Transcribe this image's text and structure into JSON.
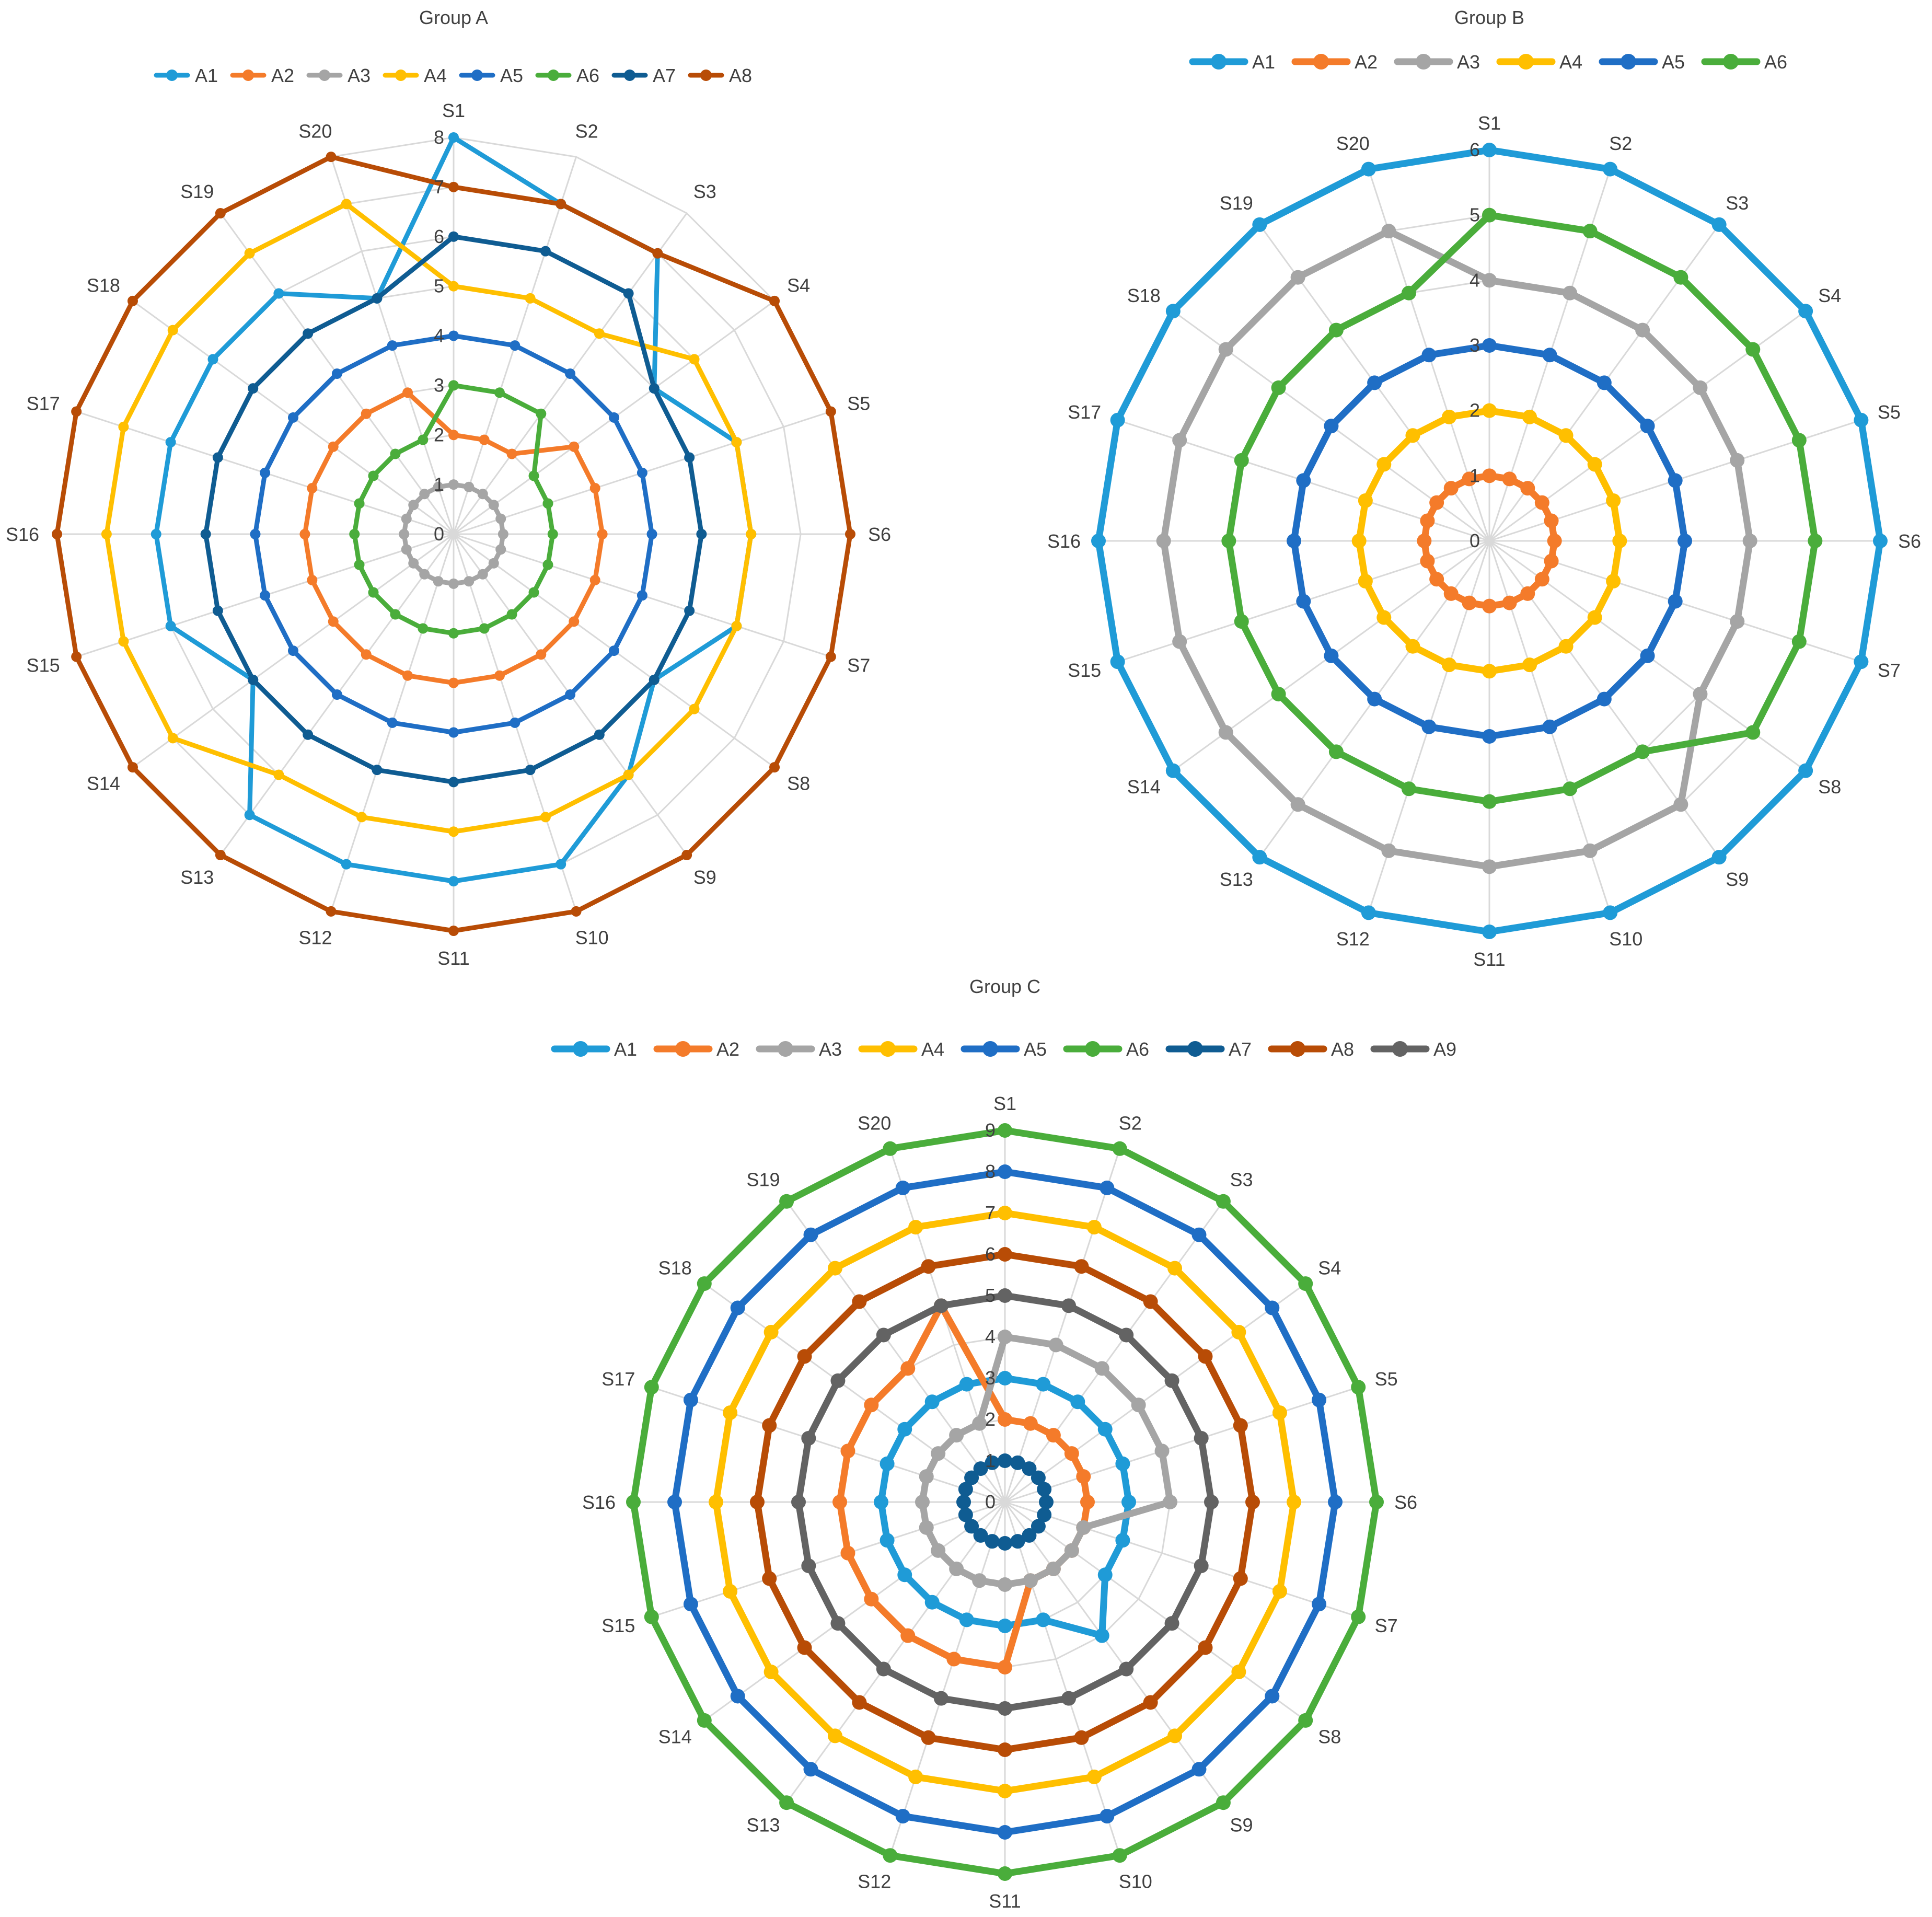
{
  "chart_data": [
    {
      "type": "radar",
      "title": "Group A",
      "categories": [
        "S1",
        "S2",
        "S3",
        "S4",
        "S5",
        "S6",
        "S7",
        "S8",
        "S9",
        "S10",
        "S11",
        "S12",
        "S13",
        "S14",
        "S15",
        "S16",
        "S17",
        "S18",
        "S19",
        "S20"
      ],
      "rmax": 8,
      "ticks": [
        "0",
        "1",
        "2",
        "3",
        "4",
        "5",
        "6",
        "7",
        "8"
      ],
      "grid": true,
      "legend_position": "top",
      "series": [
        {
          "name": "A1",
          "color": "#1f9bd7",
          "values": [
            8,
            7,
            7,
            5,
            6,
            6,
            6,
            5,
            6,
            7,
            7,
            7,
            7,
            5,
            6,
            6,
            6,
            6,
            6,
            5
          ]
        },
        {
          "name": "A2",
          "color": "#f47b2a",
          "values": [
            2,
            2,
            2,
            3,
            3,
            3,
            3,
            3,
            3,
            3,
            3,
            3,
            3,
            3,
            3,
            3,
            3,
            3,
            3,
            3
          ]
        },
        {
          "name": "A3",
          "color": "#a5a5a5",
          "values": [
            1,
            1,
            1,
            1,
            1,
            1,
            1,
            1,
            1,
            1,
            1,
            1,
            1,
            1,
            1,
            1,
            1,
            1,
            1,
            1
          ]
        },
        {
          "name": "A4",
          "color": "#ffbf00",
          "values": [
            5,
            5,
            5,
            6,
            6,
            6,
            6,
            6,
            6,
            6,
            6,
            6,
            6,
            7,
            7,
            7,
            7,
            7,
            7,
            7
          ]
        },
        {
          "name": "A5",
          "color": "#1f6ec5",
          "values": [
            4,
            4,
            4,
            4,
            4,
            4,
            4,
            4,
            4,
            4,
            4,
            4,
            4,
            4,
            4,
            4,
            4,
            4,
            4,
            4
          ]
        },
        {
          "name": "A6",
          "color": "#4aad3b",
          "values": [
            3,
            3,
            3,
            2,
            2,
            2,
            2,
            2,
            2,
            2,
            2,
            2,
            2,
            2,
            2,
            2,
            2,
            2,
            2,
            2
          ]
        },
        {
          "name": "A7",
          "color": "#0f5c92",
          "values": [
            6,
            6,
            6,
            5,
            5,
            5,
            5,
            5,
            5,
            5,
            5,
            5,
            5,
            5,
            5,
            5,
            5,
            5,
            5,
            5
          ]
        },
        {
          "name": "A8",
          "color": "#b84c06",
          "values": [
            7,
            7,
            7,
            8,
            8,
            8,
            8,
            8,
            8,
            8,
            8,
            8,
            8,
            8,
            8,
            8,
            8,
            8,
            8,
            8
          ]
        }
      ]
    },
    {
      "type": "radar",
      "title": "Group B",
      "categories": [
        "S1",
        "S2",
        "S3",
        "S4",
        "S5",
        "S6",
        "S7",
        "S8",
        "S9",
        "S10",
        "S11",
        "S12",
        "S13",
        "S14",
        "S15",
        "S16",
        "S17",
        "S18",
        "S19",
        "S20"
      ],
      "rmax": 6,
      "ticks": [
        "0",
        "1",
        "2",
        "3",
        "4",
        "5",
        "6"
      ],
      "grid": true,
      "legend_position": "top",
      "series": [
        {
          "name": "A1",
          "color": "#1f9bd7",
          "values": [
            6,
            6,
            6,
            6,
            6,
            6,
            6,
            6,
            6,
            6,
            6,
            6,
            6,
            6,
            6,
            6,
            6,
            6,
            6,
            6
          ]
        },
        {
          "name": "A2",
          "color": "#f47b2a",
          "values": [
            1,
            1,
            1,
            1,
            1,
            1,
            1,
            1,
            1,
            1,
            1,
            1,
            1,
            1,
            1,
            1,
            1,
            1,
            1,
            1
          ]
        },
        {
          "name": "A3",
          "color": "#a5a5a5",
          "values": [
            4,
            4,
            4,
            4,
            4,
            4,
            4,
            4,
            5,
            5,
            5,
            5,
            5,
            5,
            5,
            5,
            5,
            5,
            5,
            5
          ]
        },
        {
          "name": "A4",
          "color": "#ffbf00",
          "values": [
            2,
            2,
            2,
            2,
            2,
            2,
            2,
            2,
            2,
            2,
            2,
            2,
            2,
            2,
            2,
            2,
            2,
            2,
            2,
            2
          ]
        },
        {
          "name": "A5",
          "color": "#1f6ec5",
          "values": [
            3,
            3,
            3,
            3,
            3,
            3,
            3,
            3,
            3,
            3,
            3,
            3,
            3,
            3,
            3,
            3,
            3,
            3,
            3,
            3
          ]
        },
        {
          "name": "A6",
          "color": "#4aad3b",
          "values": [
            5,
            5,
            5,
            5,
            5,
            5,
            5,
            5,
            4,
            4,
            4,
            4,
            4,
            4,
            4,
            4,
            4,
            4,
            4,
            4
          ]
        }
      ]
    },
    {
      "type": "radar",
      "title": "Group C",
      "categories": [
        "S1",
        "S2",
        "S3",
        "S4",
        "S5",
        "S6",
        "S7",
        "S8",
        "S9",
        "S10",
        "S11",
        "S12",
        "S13",
        "S14",
        "S15",
        "S16",
        "S17",
        "S18",
        "S19",
        "S20"
      ],
      "rmax": 9,
      "ticks": [
        "0",
        "1",
        "2",
        "3",
        "4",
        "5",
        "6",
        "7",
        "8",
        "9"
      ],
      "grid": true,
      "legend_position": "top",
      "series": [
        {
          "name": "A1",
          "color": "#1f9bd7",
          "values": [
            3,
            3,
            3,
            3,
            3,
            3,
            3,
            3,
            4,
            3,
            3,
            3,
            3,
            3,
            3,
            3,
            3,
            3,
            3,
            3
          ]
        },
        {
          "name": "A2",
          "color": "#f47b2a",
          "values": [
            2,
            2,
            2,
            2,
            2,
            2,
            2,
            2,
            2,
            2,
            4,
            4,
            4,
            4,
            4,
            4,
            4,
            4,
            4,
            5
          ]
        },
        {
          "name": "A3",
          "color": "#a5a5a5",
          "values": [
            4,
            4,
            4,
            4,
            4,
            4,
            2,
            2,
            2,
            2,
            2,
            2,
            2,
            2,
            2,
            2,
            2,
            2,
            2,
            2
          ]
        },
        {
          "name": "A4",
          "color": "#ffbf00",
          "values": [
            7,
            7,
            7,
            7,
            7,
            7,
            7,
            7,
            7,
            7,
            7,
            7,
            7,
            7,
            7,
            7,
            7,
            7,
            7,
            7
          ]
        },
        {
          "name": "A5",
          "color": "#1f6ec5",
          "values": [
            8,
            8,
            8,
            8,
            8,
            8,
            8,
            8,
            8,
            8,
            8,
            8,
            8,
            8,
            8,
            8,
            8,
            8,
            8,
            8
          ]
        },
        {
          "name": "A6",
          "color": "#4aad3b",
          "values": [
            9,
            9,
            9,
            9,
            9,
            9,
            9,
            9,
            9,
            9,
            9,
            9,
            9,
            9,
            9,
            9,
            9,
            9,
            9,
            9
          ]
        },
        {
          "name": "A7",
          "color": "#0f5c92",
          "values": [
            1,
            1,
            1,
            1,
            1,
            1,
            1,
            1,
            1,
            1,
            1,
            1,
            1,
            1,
            1,
            1,
            1,
            1,
            1,
            1
          ]
        },
        {
          "name": "A8",
          "color": "#b84c06",
          "values": [
            6,
            6,
            6,
            6,
            6,
            6,
            6,
            6,
            6,
            6,
            6,
            6,
            6,
            6,
            6,
            6,
            6,
            6,
            6,
            6
          ]
        },
        {
          "name": "A9",
          "color": "#636363",
          "values": [
            5,
            5,
            5,
            5,
            5,
            5,
            5,
            5,
            5,
            5,
            5,
            5,
            5,
            5,
            5,
            5,
            5,
            5,
            5,
            5
          ]
        }
      ]
    }
  ]
}
